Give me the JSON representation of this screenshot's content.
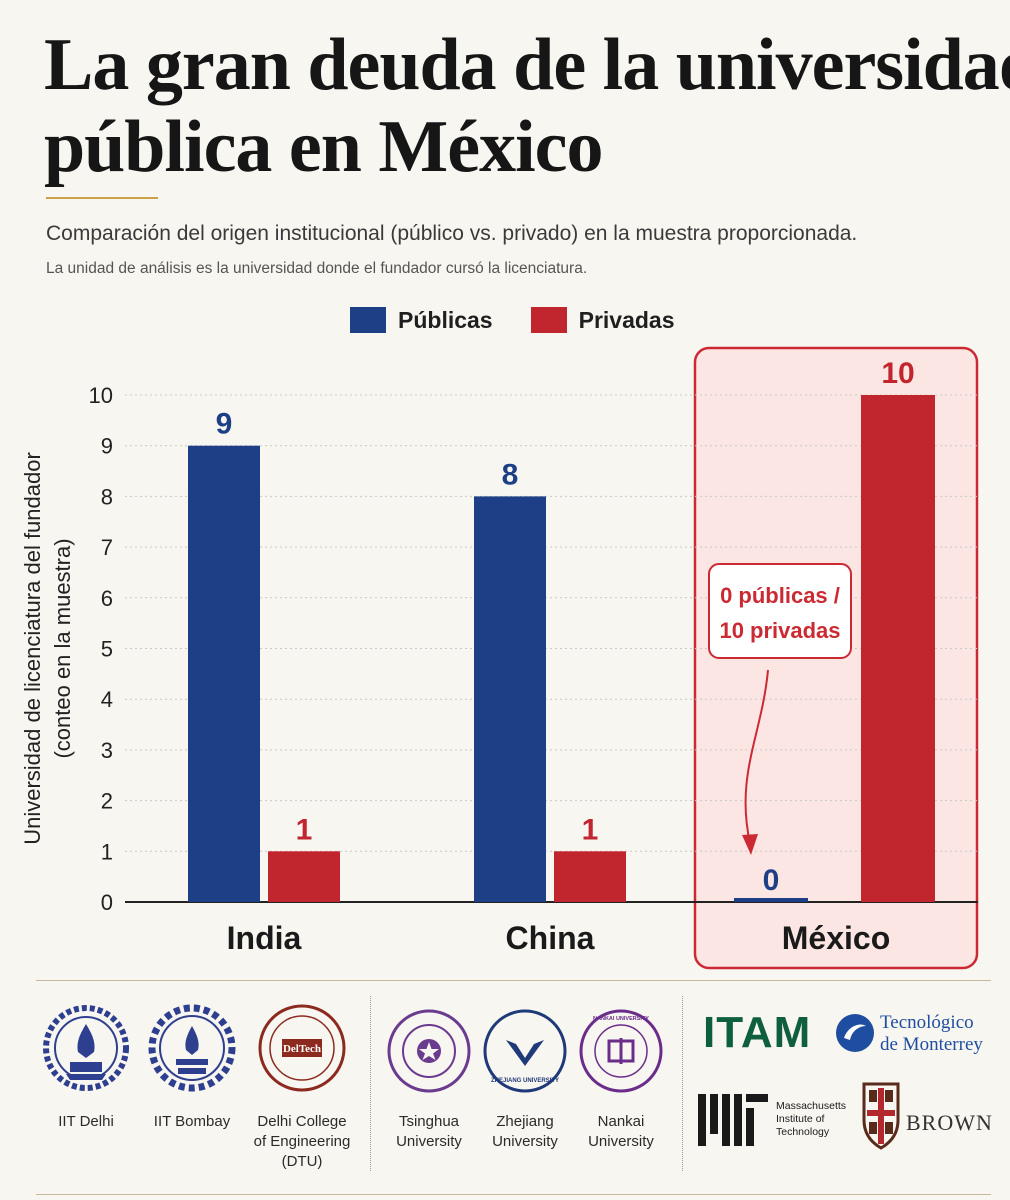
{
  "header": {
    "title_line1": "La gran deuda de la universidad",
    "title_line2": "pública en México",
    "subtitle": "Comparación del origen institucional (público vs. privado) en la muestra proporcionada.",
    "note": "La unidad de análisis es la universidad donde el fundador cursó la licenciatura."
  },
  "legend": {
    "public_label": "Públicas",
    "private_label": "Privadas"
  },
  "colors": {
    "public": "#1c3f85",
    "private": "#c1262e",
    "highlight_border": "#cc2a33",
    "highlight_fill": "#fbe6e4",
    "accent_rule": "#c9a24a"
  },
  "chart_data": {
    "type": "bar",
    "categories": [
      "India",
      "China",
      "México"
    ],
    "series": [
      {
        "name": "Públicas",
        "values": [
          9,
          8,
          0
        ]
      },
      {
        "name": "Privadas",
        "values": [
          1,
          1,
          10
        ]
      }
    ],
    "ylabel_line1": "Universidad de licenciatura del fundador",
    "ylabel_line2": "(conteo en la muestra)",
    "ylim": [
      0,
      10
    ],
    "yticks": [
      0,
      1,
      2,
      3,
      4,
      5,
      6,
      7,
      8,
      9,
      10
    ],
    "grid": true,
    "legend_position": "top",
    "highlight_category": "México",
    "annotation": {
      "line1": "0 públicas /",
      "line2": "10 privadas",
      "target_category": "México"
    }
  },
  "footer": {
    "india_logos": [
      {
        "name": "IIT Delhi",
        "label_lines": [
          "IIT Delhi"
        ]
      },
      {
        "name": "IIT Bombay",
        "label_lines": [
          "IIT Bombay"
        ]
      },
      {
        "name": "Delhi College of Engineering (DTU)",
        "label_lines": [
          "Delhi College",
          "of Engineering",
          "(DTU)"
        ],
        "logo_text": "DelTech"
      }
    ],
    "china_logos": [
      {
        "name": "Tsinghua University",
        "label_lines": [
          "Tsinghua",
          "University"
        ]
      },
      {
        "name": "Zhejiang University",
        "label_lines": [
          "Zhejiang",
          "University"
        ],
        "logo_text": "ZHEJIANG UNIVERSITY"
      },
      {
        "name": "Nankai University",
        "label_lines": [
          "Nankai",
          "University"
        ],
        "logo_text": "NANKAI UNIVERSITY"
      }
    ],
    "mexico_logos": {
      "itam": "ITAM",
      "tec_line1": "Tecnológico",
      "tec_line2": "de Monterrey",
      "mit_line1": "Massachusetts",
      "mit_line2": "Institute of",
      "mit_line3": "Technology",
      "brown": "BROWN"
    }
  }
}
